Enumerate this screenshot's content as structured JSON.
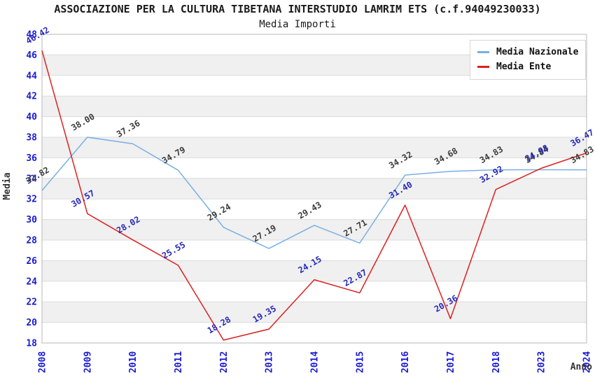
{
  "header": {
    "title": "ASSOCIAZIONE PER LA CULTURA TIBETANA INTERSTUDIO LAMRIM ETS (c.f.94049230033)",
    "subtitle": "Media Importi"
  },
  "chart_data": {
    "type": "line",
    "title": "ASSOCIAZIONE PER LA CULTURA TIBETANA INTERSTUDIO LAMRIM ETS (c.f.94049230033)",
    "subtitle": "Media Importi",
    "xlabel": "Anno",
    "ylabel": "Media",
    "x": [
      "2008",
      "2009",
      "2010",
      "2011",
      "2012",
      "2013",
      "2014",
      "2015",
      "2016",
      "2017",
      "2018",
      "2023",
      "2024"
    ],
    "series": [
      {
        "name": "Media Nazionale",
        "color": "#79afe3",
        "label_color": "#3c3c3c",
        "values": [
          32.82,
          38.0,
          37.36,
          34.79,
          29.24,
          27.19,
          29.43,
          27.71,
          34.32,
          34.68,
          34.83,
          34.84,
          34.83
        ]
      },
      {
        "name": "Media Ente",
        "color": "#dd2020",
        "label_color": "#2828bb",
        "values": [
          46.42,
          30.57,
          28.02,
          25.55,
          18.28,
          19.35,
          24.15,
          22.87,
          31.4,
          20.36,
          32.92,
          34.98,
          36.47
        ]
      }
    ],
    "ylim": [
      18,
      48
    ],
    "ytick_step": 2,
    "grid": true,
    "legend_position": "top-right",
    "tick_color": "#1a1ad4",
    "band_fill": "#f0f0f0",
    "grid_color": "#dcdcdc",
    "border_color": "#b8b8b8"
  }
}
